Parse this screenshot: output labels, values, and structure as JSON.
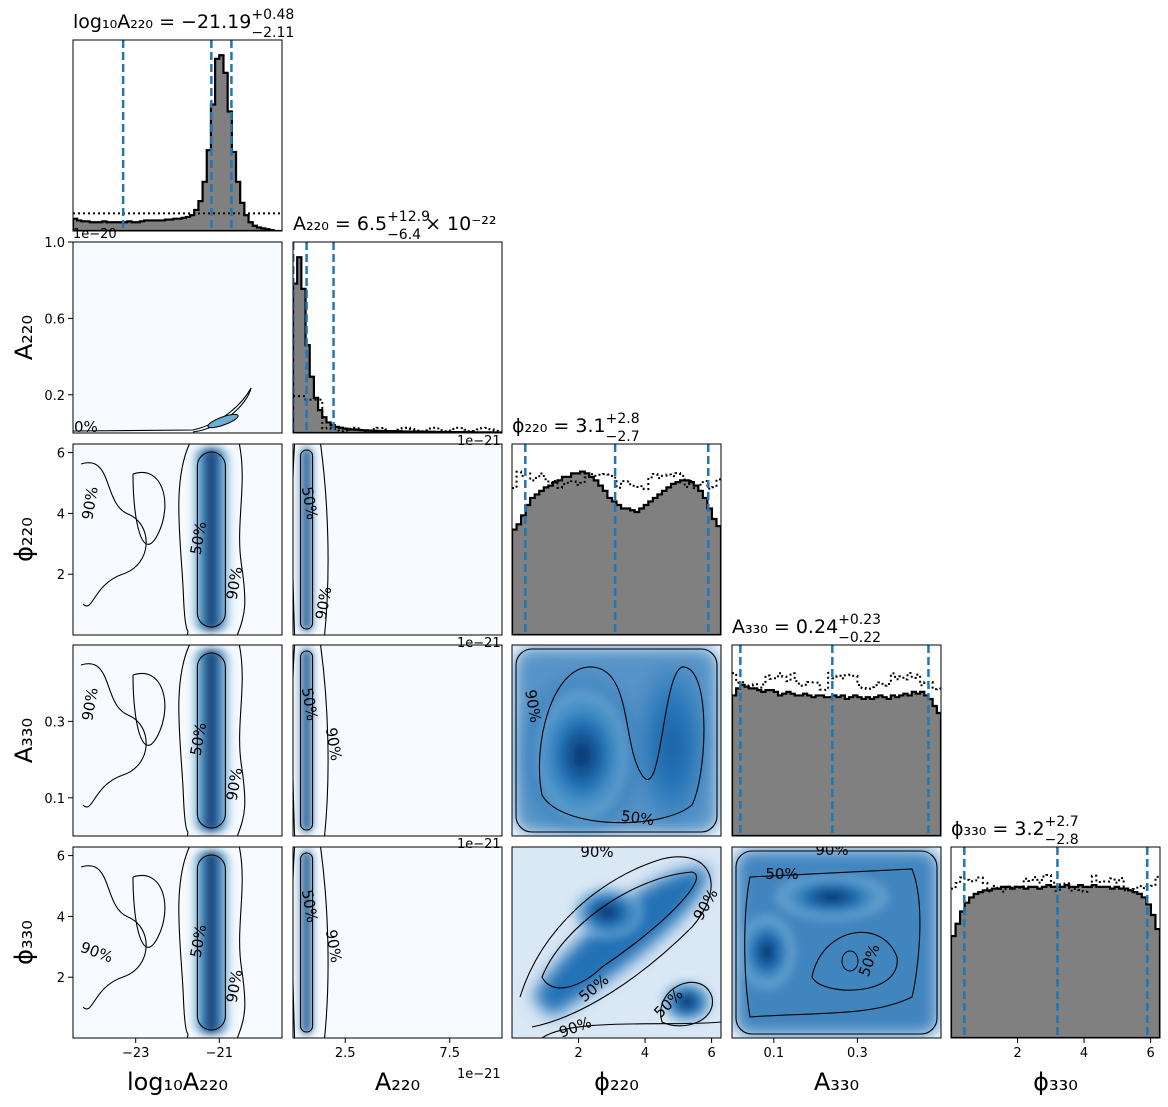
{
  "chart_data": {
    "type": "corner",
    "parameters": [
      {
        "key": "log10A220",
        "label": "log₁₀A₂₂₀",
        "range": [
          -24.5,
          -19.5
        ],
        "ticks": [
          -23,
          -21
        ],
        "tick_labels": [
          "−23",
          "−21"
        ],
        "offset_text": "",
        "title": "log₁₀A₂₂₀ = −21.19",
        "title_sup": "+0.48",
        "title_sub": "−2.11",
        "quantiles": [
          -23.3,
          -21.19,
          -20.71
        ],
        "peak": -21.19
      },
      {
        "key": "A220",
        "label": "A₂₂₀",
        "range": [
          0,
          1e-20
        ],
        "ticks": [
          2.5e-21,
          7.5e-21
        ],
        "tick_labels": [
          "2.5",
          "7.5"
        ],
        "offset_text": "1e−21",
        "y_ticks": [
          2e-21,
          6e-21,
          1e-20
        ],
        "y_tick_labels": [
          "0.2",
          "0.6",
          "1.0"
        ],
        "y_offset_text": "1e−20",
        "title": "A₂₂₀ = 6.5",
        "title_sup": "+12.9",
        "title_sub": "−6.4",
        "title_suffix": "× 10⁻²²",
        "quantiles": [
          1e-23,
          6.5e-22,
          1.94e-21
        ],
        "peak": 6.5e-22
      },
      {
        "key": "phi220",
        "label": "ϕ₂₂₀",
        "range": [
          0,
          6.283
        ],
        "ticks": [
          2,
          4,
          6
        ],
        "tick_labels": [
          "2",
          "4",
          "6"
        ],
        "offset_text": "1e−21",
        "title": "ϕ₂₂₀ = 3.1",
        "title_sup": "+2.8",
        "title_sub": "−2.7",
        "quantiles": [
          0.4,
          3.1,
          5.9
        ]
      },
      {
        "key": "A330",
        "label": "A₃₃₀",
        "range": [
          0,
          0.5
        ],
        "ticks": [
          0.1,
          0.3
        ],
        "tick_labels": [
          "0.1",
          "0.3"
        ],
        "offset_text": "1e−21",
        "title": "A₃₃₀ = 0.24",
        "title_sup": "+0.23",
        "title_sub": "−0.22",
        "quantiles": [
          0.02,
          0.24,
          0.47
        ]
      },
      {
        "key": "phi330",
        "label": "ϕ₃₃₀",
        "range": [
          0,
          6.283
        ],
        "ticks": [
          2,
          4,
          6
        ],
        "tick_labels": [
          "2",
          "4",
          "6"
        ],
        "offset_text": "",
        "title": "ϕ₃₃₀ = 3.2",
        "title_sup": "+2.7",
        "title_sub": "−2.8",
        "quantiles": [
          0.4,
          3.2,
          5.9
        ]
      }
    ],
    "diag_x_offset_text": "1e−21",
    "histograms": {
      "log10A220": [
        0.07,
        0.06,
        0.055,
        0.055,
        0.05,
        0.05,
        0.05,
        0.055,
        0.05,
        0.05,
        0.05,
        0.05,
        0.05,
        0.055,
        0.05,
        0.05,
        0.055,
        0.06,
        0.06,
        0.06,
        0.06,
        0.06,
        0.065,
        0.065,
        0.07,
        0.07,
        0.075,
        0.08,
        0.09,
        0.12,
        0.17,
        0.28,
        0.46,
        0.72,
        0.98,
        1.0,
        0.9,
        0.68,
        0.45,
        0.28,
        0.16,
        0.09,
        0.05,
        0.03,
        0.02,
        0.015,
        0.01,
        0.005,
        0.0,
        0.0
      ],
      "A220": [
        0.85,
        1.0,
        0.82,
        0.5,
        0.32,
        0.2,
        0.13,
        0.09,
        0.06,
        0.045,
        0.035,
        0.03,
        0.025,
        0.02,
        0.02,
        0.018,
        0.016,
        0.015,
        0.014,
        0.013,
        0.012,
        0.012,
        0.011,
        0.011,
        0.01,
        0.01,
        0.009,
        0.009,
        0.008,
        0.008,
        0.008,
        0.007,
        0.007,
        0.007,
        0.006,
        0.006,
        0.006,
        0.006,
        0.005,
        0.005,
        0.005,
        0.005,
        0.005,
        0.004,
        0.004,
        0.004,
        0.004,
        0.004,
        0.003,
        0.003
      ],
      "phi220": [
        0.6,
        0.63,
        0.68,
        0.74,
        0.78,
        0.8,
        0.82,
        0.84,
        0.85,
        0.87,
        0.88,
        0.9,
        0.9,
        0.92,
        0.92,
        0.93,
        0.92,
        0.9,
        0.88,
        0.85,
        0.82,
        0.78,
        0.76,
        0.74,
        0.72,
        0.72,
        0.71,
        0.7,
        0.72,
        0.74,
        0.76,
        0.78,
        0.8,
        0.82,
        0.84,
        0.86,
        0.87,
        0.88,
        0.88,
        0.87,
        0.85,
        0.82,
        0.78,
        0.72,
        0.66,
        0.62
      ],
      "A330": [
        0.8,
        0.84,
        0.86,
        0.85,
        0.84,
        0.84,
        0.83,
        0.82,
        0.83,
        0.83,
        0.82,
        0.8,
        0.81,
        0.82,
        0.81,
        0.8,
        0.8,
        0.81,
        0.8,
        0.79,
        0.8,
        0.8,
        0.79,
        0.79,
        0.8,
        0.79,
        0.8,
        0.78,
        0.79,
        0.8,
        0.79,
        0.78,
        0.79,
        0.78,
        0.79,
        0.8,
        0.79,
        0.78,
        0.8,
        0.79,
        0.8,
        0.81,
        0.8,
        0.82,
        0.81,
        0.82,
        0.8,
        0.78,
        0.74,
        0.7
      ],
      "phi330": [
        0.58,
        0.65,
        0.72,
        0.77,
        0.8,
        0.82,
        0.83,
        0.84,
        0.84,
        0.85,
        0.85,
        0.86,
        0.86,
        0.85,
        0.86,
        0.86,
        0.85,
        0.86,
        0.86,
        0.85,
        0.86,
        0.87,
        0.86,
        0.86,
        0.86,
        0.87,
        0.86,
        0.86,
        0.87,
        0.86,
        0.86,
        0.87,
        0.86,
        0.86,
        0.86,
        0.85,
        0.86,
        0.85,
        0.85,
        0.84,
        0.83,
        0.82,
        0.8,
        0.76,
        0.7,
        0.62
      ]
    },
    "prior_levels": {
      "log10A220": 0.1,
      "A220": 0.2,
      "phi220": 0.88,
      "A330": 0.88,
      "phi330": 0.88
    },
    "contour_levels": [
      "50%",
      "90%"
    ],
    "colors": {
      "hist_fill": "#808080",
      "hist_edge": "#000000",
      "quantile_line": "#1f77b4",
      "density_dark": "#08306b",
      "density_mid": "#2171b5",
      "density_light": "#deebf7",
      "density_bg": "#f7fbff"
    }
  }
}
